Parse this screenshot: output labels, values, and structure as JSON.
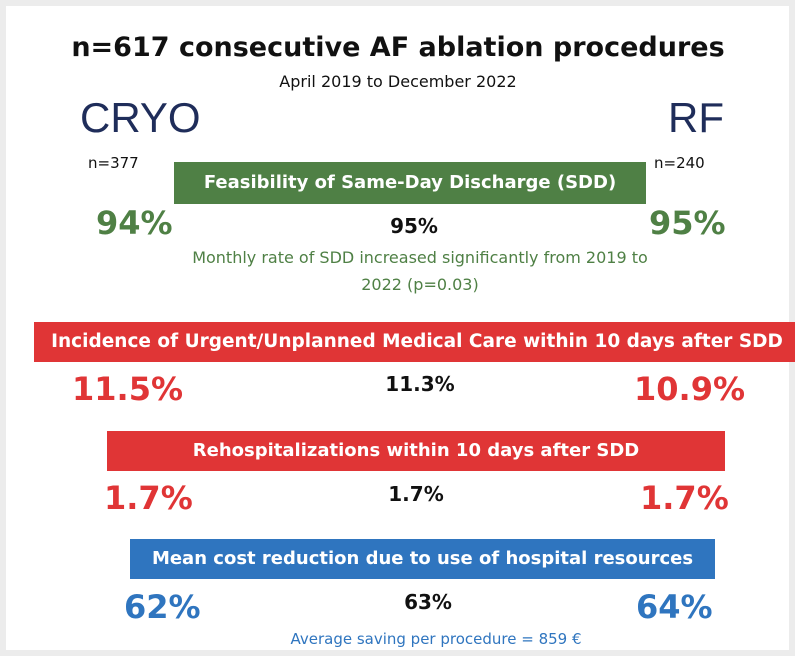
{
  "header": {
    "title": "n=617 consecutive AF ablation procedures",
    "subtitle": "April 2019 to December 2022"
  },
  "arms": {
    "left": {
      "label": "CRYO",
      "n": "n=377"
    },
    "right": {
      "label": "RF",
      "n": "n=240"
    }
  },
  "sections": {
    "sdd": {
      "banner": "Feasibility of Same-Day Discharge (SDD)",
      "cryo": "94%",
      "overall": "95%",
      "rf": "95%",
      "note": "Monthly rate of SDD increased significantly from 2019 to 2022 (p=0.03)"
    },
    "urgent": {
      "banner": "Incidence of Urgent/Unplanned Medical Care within 10 days after SDD",
      "cryo": "11.5%",
      "overall": "11.3%",
      "rf": "10.9%"
    },
    "rehosp": {
      "banner": "Rehospitalizations within 10 days after SDD",
      "cryo": "1.7%",
      "overall": "1.7%",
      "rf": "1.7%"
    },
    "cost": {
      "banner": "Mean cost reduction due to use of hospital resources",
      "cryo": "62%",
      "overall": "63%",
      "rf": "64%",
      "note": "Average saving per procedure = 859 €"
    }
  },
  "colors": {
    "green": "#4f8045",
    "red": "#e03536",
    "blue": "#2f75bf",
    "navy": "#1f2d5a"
  }
}
